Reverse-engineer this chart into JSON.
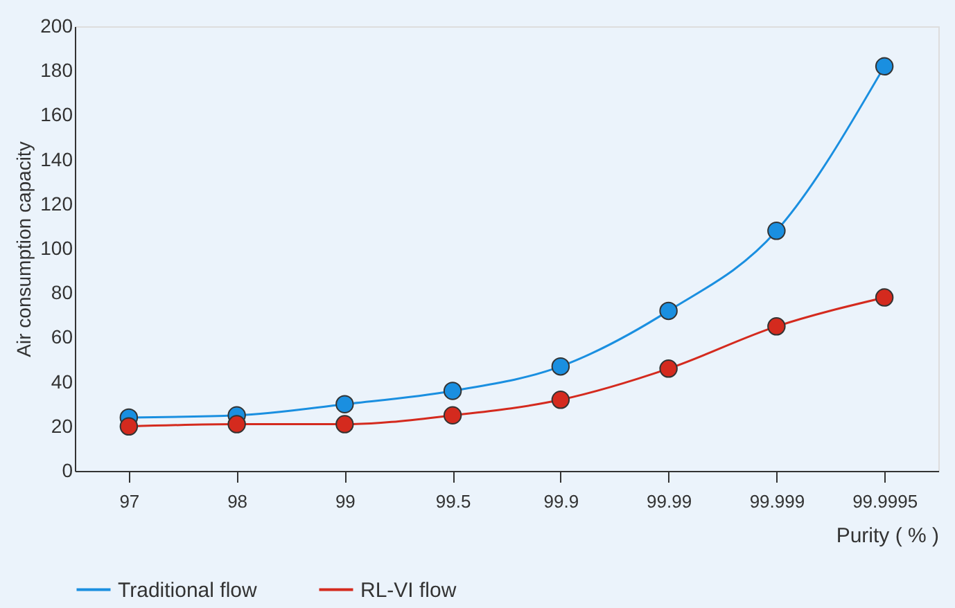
{
  "chart_data": {
    "type": "line",
    "xlabel": "Purity ( % )",
    "ylabel": "Air consumption capacity",
    "categories": [
      "97",
      "98",
      "99",
      "99.5",
      "99.9",
      "99.99",
      "99.999",
      "99.9995"
    ],
    "series": [
      {
        "name": "Traditional flow",
        "color": "#1a8fe0",
        "values": [
          24,
          25,
          30,
          36,
          47,
          72,
          108,
          182
        ]
      },
      {
        "name": "RL-VI flow",
        "color": "#d42a1e",
        "values": [
          20,
          21,
          21,
          25,
          32,
          46,
          65,
          78
        ]
      }
    ],
    "ylim": [
      0,
      200
    ],
    "yticks": [
      0,
      20,
      40,
      60,
      80,
      100,
      120,
      140,
      160,
      180,
      200
    ],
    "grid": false,
    "legend": "bottom",
    "marker": "circle",
    "line_style": "solid"
  }
}
